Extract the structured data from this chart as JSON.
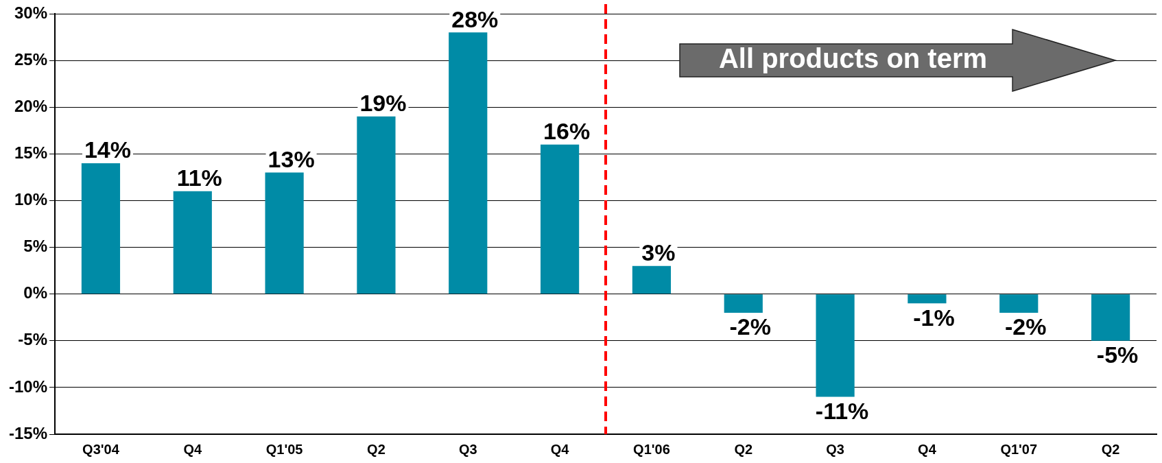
{
  "chart_data": {
    "type": "bar",
    "categories": [
      "Q3'04",
      "Q4",
      "Q1'05",
      "Q2",
      "Q3",
      "Q4",
      "Q1'06",
      "Q2",
      "Q3",
      "Q4",
      "Q1'07",
      "Q2"
    ],
    "values": [
      14,
      11,
      13,
      19,
      28,
      16,
      3,
      -2,
      -11,
      -1,
      -2,
      -5
    ],
    "value_labels": [
      "14%",
      "11%",
      "13%",
      "19%",
      "28%",
      "16%",
      "3%",
      "-2%",
      "-11%",
      "-1%",
      "-2%",
      "-5%"
    ],
    "color": "#008ba6",
    "ylim": [
      -15,
      30
    ],
    "yticks": [
      {
        "value": -15,
        "label": "-15%"
      },
      {
        "value": -10,
        "label": "-10%"
      },
      {
        "value": -5,
        "label": "-5%"
      },
      {
        "value": 0,
        "label": "0%"
      },
      {
        "value": 5,
        "label": "5%"
      },
      {
        "value": 10,
        "label": "10%"
      },
      {
        "value": 15,
        "label": "15%"
      },
      {
        "value": 20,
        "label": "20%"
      },
      {
        "value": 25,
        "label": "25%"
      },
      {
        "value": 30,
        "label": "30%"
      }
    ],
    "grid": "y",
    "legend": false,
    "ref_lines": [
      {
        "axis": "x",
        "value": "Q1'06",
        "color": "#ff0000",
        "line_style": "dashed"
      }
    ],
    "annotations": [
      "All products on term"
    ]
  }
}
